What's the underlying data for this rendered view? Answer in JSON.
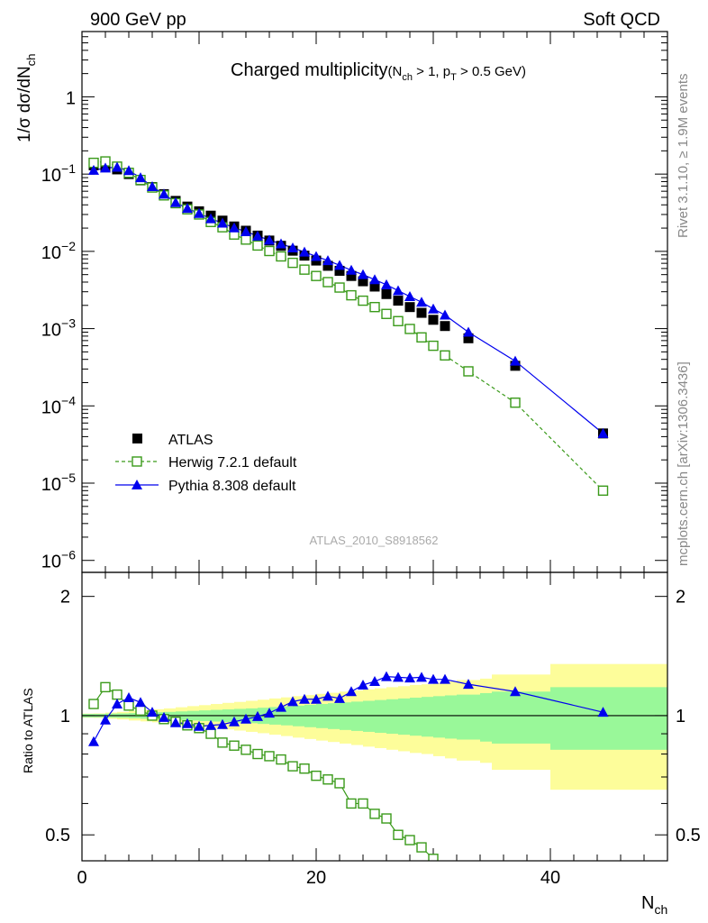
{
  "header": {
    "left": "900 GeV pp",
    "right": "Soft QCD"
  },
  "side": {
    "version": "Rivet 3.1.10, ≥ 1.9M events",
    "source": "mcplots.cern.ch [arXiv:1306.3436]"
  },
  "chart_data": [
    {
      "type": "scatter",
      "title": "Charged multiplicity",
      "title_cuts": {
        "n": "N",
        "n_sub": "ch",
        "n_rest": " > 1, p",
        "p_sub": "T",
        "p_rest": " > 0.5 GeV)"
      },
      "ylabel": {
        "pre": "1/σ dσ/dN",
        "sub": "ch"
      },
      "analysis_label": "ATLAS_2010_S8918562",
      "scale": "log",
      "xlim": [
        0,
        50
      ],
      "ylim": [
        7e-07,
        7
      ],
      "yticks": [
        {
          "v": 1e-06,
          "base": "10",
          "exp": "−6"
        },
        {
          "v": 1e-05,
          "base": "10",
          "exp": "−5"
        },
        {
          "v": 0.0001,
          "base": "10",
          "exp": "−4"
        },
        {
          "v": 0.001,
          "base": "10",
          "exp": "−3"
        },
        {
          "v": 0.01,
          "base": "10",
          "exp": "−2"
        },
        {
          "v": 0.1,
          "base": "10",
          "exp": "−1"
        },
        {
          "v": 1,
          "base": "1",
          "exp": ""
        }
      ],
      "legend_position": "bottom-left",
      "series": [
        {
          "name": "ATLAS",
          "marker": "square-filled",
          "color": "#000000",
          "x": [
            1,
            2,
            3,
            4,
            5,
            6,
            7,
            8,
            9,
            10,
            11,
            12,
            13,
            14,
            15,
            16,
            17,
            18,
            19,
            20,
            21,
            22,
            23,
            24,
            25,
            26,
            27,
            28,
            29,
            30,
            31,
            33,
            37,
            44.5
          ],
          "y": [
            0.13,
            0.123,
            0.115,
            0.1,
            0.083,
            0.068,
            0.055,
            0.045,
            0.038,
            0.033,
            0.029,
            0.025,
            0.021,
            0.0185,
            0.016,
            0.0138,
            0.0118,
            0.0102,
            0.0088,
            0.0076,
            0.0065,
            0.0056,
            0.0048,
            0.0041,
            0.0035,
            0.0028,
            0.0023,
            0.0019,
            0.0016,
            0.0013,
            0.00108,
            0.00075,
            0.00033,
            4.4e-05
          ]
        },
        {
          "name": "Herwig 7.2.1 default",
          "marker": "square-open",
          "color": "#3a9a1a",
          "dashed": true,
          "x": [
            1,
            2,
            3,
            4,
            5,
            6,
            7,
            8,
            9,
            10,
            11,
            12,
            13,
            14,
            15,
            16,
            17,
            18,
            19,
            20,
            21,
            22,
            23,
            24,
            25,
            26,
            27,
            28,
            29,
            30,
            31,
            33,
            37,
            44.5
          ],
          "y": [
            0.14,
            0.146,
            0.125,
            0.104,
            0.084,
            0.067,
            0.053,
            0.042,
            0.035,
            0.03,
            0.024,
            0.0205,
            0.0165,
            0.0142,
            0.0119,
            0.0101,
            0.0086,
            0.0071,
            0.0058,
            0.0048,
            0.004,
            0.0034,
            0.0027,
            0.0023,
            0.0019,
            0.00155,
            0.00125,
            0.00099,
            0.00077,
            0.0006,
            0.00045,
            0.00028,
            0.00011,
            8e-06
          ]
        },
        {
          "name": "Pythia 8.308 default",
          "marker": "triangle-filled",
          "color": "#0000ee",
          "x": [
            1,
            2,
            3,
            4,
            5,
            6,
            7,
            8,
            9,
            10,
            11,
            12,
            13,
            14,
            15,
            16,
            17,
            18,
            19,
            20,
            21,
            22,
            23,
            24,
            25,
            26,
            27,
            28,
            29,
            30,
            31,
            33,
            37,
            44.5
          ],
          "y": [
            0.112,
            0.12,
            0.123,
            0.111,
            0.09,
            0.069,
            0.055,
            0.043,
            0.036,
            0.031,
            0.0265,
            0.0232,
            0.0202,
            0.018,
            0.0158,
            0.014,
            0.0125,
            0.0111,
            0.0098,
            0.0086,
            0.0076,
            0.0066,
            0.0057,
            0.005,
            0.0043,
            0.0037,
            0.0031,
            0.0026,
            0.0022,
            0.0018,
            0.0015,
            0.0009,
            0.00038,
            4.4e-05
          ]
        }
      ]
    },
    {
      "type": "line",
      "ylabel": "Ratio to ATLAS",
      "xlabel": {
        "pre": "N",
        "sub": "ch"
      },
      "scale": "log",
      "xlim": [
        0,
        50
      ],
      "ylim": [
        0.43,
        2.3
      ],
      "xticks": [
        0,
        20,
        40
      ],
      "yticks": [
        0.5,
        1,
        2
      ],
      "bands": {
        "edges": [
          0,
          1,
          2,
          3,
          4,
          5,
          6,
          7,
          8,
          9,
          10,
          11,
          12,
          13,
          14,
          15,
          16,
          17,
          18,
          19,
          20,
          21,
          22,
          23,
          24,
          25,
          26,
          27,
          28,
          29,
          30,
          31,
          32,
          34,
          35,
          40,
          50
        ],
        "green_half": [
          0.01,
          0.01,
          0.012,
          0.013,
          0.015,
          0.018,
          0.02,
          0.022,
          0.025,
          0.028,
          0.031,
          0.034,
          0.037,
          0.04,
          0.043,
          0.047,
          0.051,
          0.055,
          0.06,
          0.065,
          0.07,
          0.075,
          0.08,
          0.085,
          0.09,
          0.095,
          0.1,
          0.105,
          0.11,
          0.115,
          0.12,
          0.125,
          0.13,
          0.14,
          0.15,
          0.18
        ],
        "yellow_half": [
          0.012,
          0.013,
          0.018,
          0.022,
          0.028,
          0.033,
          0.038,
          0.043,
          0.05,
          0.057,
          0.063,
          0.07,
          0.077,
          0.083,
          0.09,
          0.097,
          0.105,
          0.112,
          0.12,
          0.127,
          0.135,
          0.142,
          0.15,
          0.157,
          0.165,
          0.172,
          0.18,
          0.187,
          0.195,
          0.2,
          0.21,
          0.22,
          0.23,
          0.24,
          0.27,
          0.35
        ]
      },
      "series": [
        {
          "name": "Herwig 7.2.1 default",
          "color": "#3a9a1a",
          "x": [
            1,
            2,
            3,
            4,
            5,
            6,
            7,
            8,
            9,
            10,
            11,
            12,
            13,
            14,
            15,
            16,
            17,
            18,
            19,
            20,
            21,
            22,
            23,
            24,
            25,
            26,
            27,
            28,
            29,
            30,
            31
          ],
          "y": [
            1.07,
            1.18,
            1.13,
            1.06,
            1.03,
            1.0,
            0.98,
            0.965,
            0.945,
            0.93,
            0.9,
            0.855,
            0.84,
            0.82,
            0.8,
            0.79,
            0.775,
            0.745,
            0.735,
            0.705,
            0.69,
            0.675,
            0.6,
            0.6,
            0.565,
            0.55,
            0.5,
            0.485,
            0.465,
            0.435,
            0.415
          ]
        },
        {
          "name": "Pythia 8.308 default",
          "color": "#0000ee",
          "x": [
            1,
            2,
            3,
            4,
            5,
            6,
            7,
            8,
            9,
            10,
            11,
            12,
            13,
            14,
            15,
            16,
            17,
            18,
            19,
            20,
            21,
            22,
            23,
            24,
            25,
            26,
            27,
            28,
            29,
            30,
            31,
            33,
            37,
            44.5
          ],
          "y": [
            0.86,
            0.975,
            1.07,
            1.11,
            1.08,
            1.02,
            0.99,
            0.96,
            0.955,
            0.94,
            0.945,
            0.95,
            0.965,
            0.98,
            0.995,
            1.015,
            1.05,
            1.085,
            1.1,
            1.1,
            1.12,
            1.105,
            1.15,
            1.195,
            1.22,
            1.255,
            1.25,
            1.245,
            1.25,
            1.235,
            1.235,
            1.2,
            1.15,
            1.02
          ]
        }
      ]
    }
  ]
}
